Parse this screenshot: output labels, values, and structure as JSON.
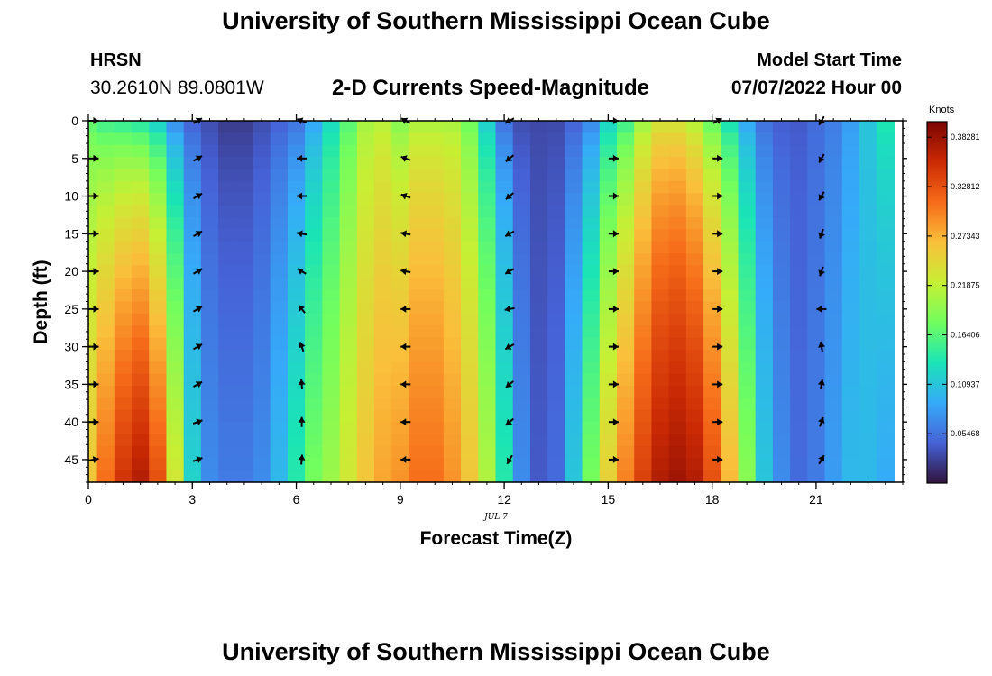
{
  "header": {
    "title": "University of Southern Mississippi Ocean Cube",
    "station": "HRSN",
    "coords": "30.2610N  89.0801W",
    "subtitle": "2-D Currents Speed-Magnitude",
    "model_start_label": "Model Start Time",
    "model_start_value": "07/07/2022 Hour 00"
  },
  "footer": {
    "title": "University of Southern Mississippi Ocean Cube"
  },
  "chart_data": {
    "type": "heatmap",
    "title": "2-D Currents Speed-Magnitude",
    "xlabel": "Forecast Time(Z)",
    "ylabel": "Depth (ft)",
    "date_label": "JUL 7",
    "xlim": [
      0,
      23.5
    ],
    "ylim": [
      0,
      48
    ],
    "x_ticks": [
      0,
      3,
      6,
      9,
      12,
      15,
      18,
      21
    ],
    "y_ticks": [
      0,
      5,
      10,
      15,
      20,
      25,
      30,
      35,
      40,
      45
    ],
    "colorbar": {
      "label": "Knots",
      "range": [
        0,
        0.4
      ],
      "ticks": [
        "0.38281",
        "0.32812",
        "0.27343",
        "0.21875",
        "0.16406",
        "0.10937",
        "0.05468"
      ],
      "tick_values": [
        0.38281,
        0.32812,
        0.27343,
        0.21875,
        0.16406,
        0.10937,
        0.05468
      ],
      "colors": [
        "#30123b",
        "#4662d7",
        "#36aaf9",
        "#1ae4b6",
        "#72fe5e",
        "#c7ef34",
        "#fabf3b",
        "#f66b19",
        "#cb2a04",
        "#7a0403"
      ]
    },
    "speed_profile": {
      "time_hours": [
        0,
        0.5,
        1,
        1.5,
        2,
        2.5,
        3,
        3.5,
        4,
        4.5,
        5,
        5.5,
        6,
        6.5,
        7,
        7.5,
        8,
        8.5,
        9,
        9.5,
        10,
        10.5,
        11,
        11.5,
        12,
        12.5,
        13,
        13.5,
        14,
        14.5,
        15,
        15.5,
        16,
        16.5,
        17,
        17.5,
        18,
        18.5,
        19,
        19.5,
        20,
        20.5,
        21,
        21.5,
        22,
        22.5,
        23
      ],
      "surface_knots": [
        0.16,
        0.14,
        0.13,
        0.12,
        0.1,
        0.06,
        0.04,
        0.03,
        0.02,
        0.02,
        0.03,
        0.04,
        0.05,
        0.08,
        0.12,
        0.16,
        0.2,
        0.21,
        0.18,
        0.2,
        0.2,
        0.2,
        0.17,
        0.11,
        0.05,
        0.03,
        0.03,
        0.03,
        0.04,
        0.06,
        0.11,
        0.14,
        0.19,
        0.22,
        0.22,
        0.2,
        0.16,
        0.12,
        0.08,
        0.05,
        0.04,
        0.04,
        0.05,
        0.06,
        0.08,
        0.11,
        0.14
      ],
      "bottom_knots": [
        0.26,
        0.31,
        0.35,
        0.37,
        0.33,
        0.23,
        0.12,
        0.07,
        0.06,
        0.06,
        0.07,
        0.1,
        0.14,
        0.18,
        0.2,
        0.23,
        0.26,
        0.28,
        0.29,
        0.31,
        0.31,
        0.29,
        0.26,
        0.21,
        0.14,
        0.07,
        0.04,
        0.05,
        0.11,
        0.18,
        0.25,
        0.3,
        0.34,
        0.37,
        0.38,
        0.37,
        0.33,
        0.27,
        0.19,
        0.11,
        0.07,
        0.05,
        0.06,
        0.08,
        0.1,
        0.1,
        0.09
      ]
    },
    "vectors": {
      "times": [
        0,
        3,
        6,
        9,
        12,
        15,
        18,
        21
      ],
      "depths": [
        0,
        5,
        10,
        15,
        20,
        25,
        30,
        35,
        40,
        45
      ],
      "direction_deg": [
        [
          90,
          90,
          90,
          90,
          90,
          90,
          90,
          90,
          90,
          80
        ],
        [
          60,
          60,
          60,
          60,
          60,
          60,
          60,
          60,
          70,
          70
        ],
        [
          -70,
          -90,
          -90,
          -80,
          -60,
          -40,
          -20,
          -5,
          0,
          5
        ],
        [
          -60,
          -70,
          -70,
          -80,
          -80,
          -90,
          -90,
          -90,
          -90,
          -90
        ],
        [
          -120,
          -130,
          -130,
          -120,
          -120,
          -100,
          -120,
          -130,
          -130,
          -150
        ],
        [
          90,
          90,
          90,
          90,
          90,
          90,
          90,
          90,
          90,
          90
        ],
        [
          60,
          90,
          90,
          90,
          90,
          90,
          90,
          90,
          90,
          90
        ],
        [
          -150,
          -150,
          -150,
          -160,
          -160,
          -90,
          -10,
          10,
          20,
          30
        ]
      ]
    }
  }
}
